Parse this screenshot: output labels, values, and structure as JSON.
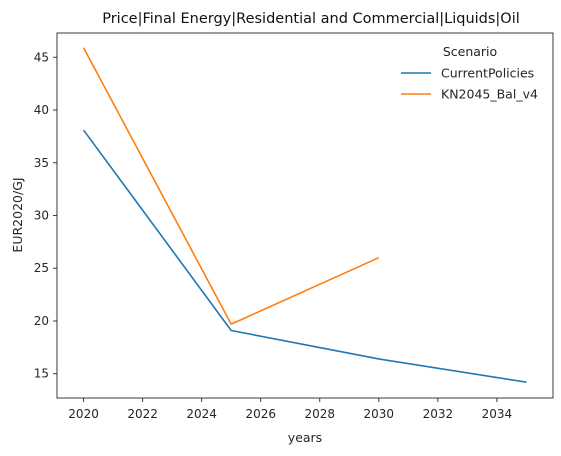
{
  "chart_data": {
    "type": "line",
    "title": "Price|Final Energy|Residential and Commercial|Liquids|Oil",
    "xlabel": "years",
    "ylabel": "EUR2020/GJ",
    "xlim": [
      2019.1,
      2035.9
    ],
    "ylim": [
      12.7,
      47.3
    ],
    "xticks": [
      2020,
      2022,
      2024,
      2026,
      2028,
      2030,
      2032,
      2034
    ],
    "yticks": [
      15,
      20,
      25,
      30,
      35,
      40,
      45
    ],
    "grid": false,
    "legend": {
      "title": "Scenario",
      "placement": "top-right"
    },
    "series": [
      {
        "name": "CurrentPolicies",
        "color": "#1f77b4",
        "x": [
          2020,
          2025,
          2030,
          2035
        ],
        "y": [
          38.1,
          19.1,
          16.4,
          14.2
        ]
      },
      {
        "name": "KN2045_Bal_v4",
        "color": "#ff7f0e",
        "x": [
          2020,
          2025,
          2030
        ],
        "y": [
          45.9,
          19.7,
          26.0
        ]
      }
    ]
  }
}
